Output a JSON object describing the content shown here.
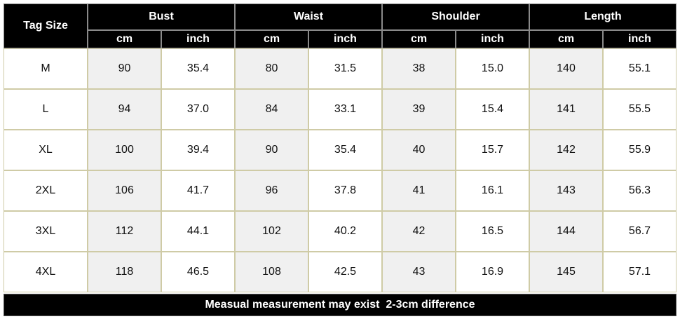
{
  "header": {
    "tag_size": "Tag Size",
    "groups": [
      "Bust",
      "Waist",
      "Shoulder",
      "Length"
    ],
    "units": [
      "cm",
      "inch",
      "cm",
      "inch",
      "cm",
      "inch",
      "cm",
      "inch"
    ]
  },
  "table": {
    "rows": [
      [
        "M",
        "90",
        "35.4",
        "80",
        "31.5",
        "38",
        "15.0",
        "140",
        "55.1"
      ],
      [
        "L",
        "94",
        "37.0",
        "84",
        "33.1",
        "39",
        "15.4",
        "141",
        "55.5"
      ],
      [
        "XL",
        "100",
        "39.4",
        "90",
        "35.4",
        "40",
        "15.7",
        "142",
        "55.9"
      ],
      [
        "2XL",
        "106",
        "41.7",
        "96",
        "37.8",
        "41",
        "16.1",
        "143",
        "56.3"
      ],
      [
        "3XL",
        "112",
        "44.1",
        "102",
        "40.2",
        "42",
        "16.5",
        "144",
        "56.7"
      ],
      [
        "4XL",
        "118",
        "46.5",
        "108",
        "42.5",
        "43",
        "16.9",
        "145",
        "57.1"
      ]
    ]
  },
  "footer": {
    "note": "Measual measurement may exist  2-3cm difference"
  }
}
